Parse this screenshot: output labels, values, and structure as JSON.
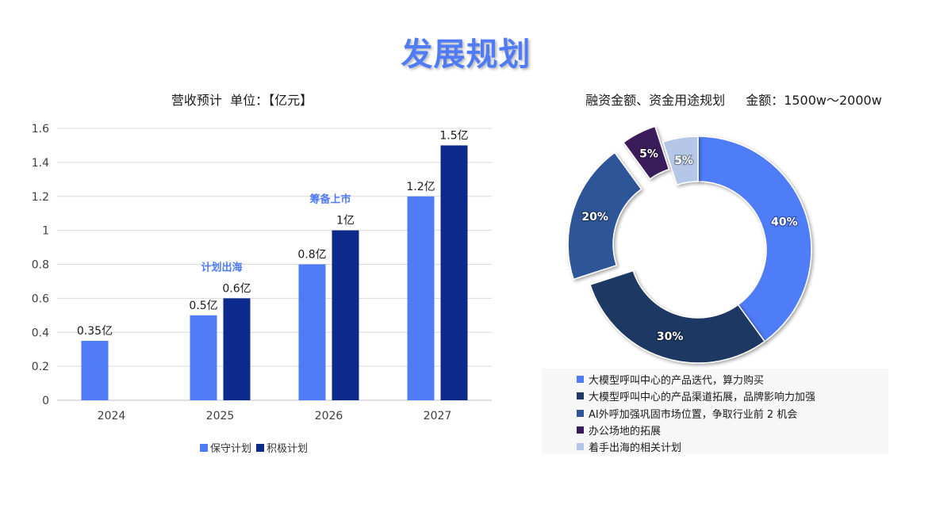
{
  "page": {
    "title": "发展规划"
  },
  "bar_chart": {
    "title_left": "营收预计",
    "title_unit": "单位：【亿元】"
  },
  "donut_chart": {
    "title_main": "融资金额、资金用途规划",
    "title_amount": "金额：1500w～2000w"
  },
  "colors": {
    "title": "#4f7bf7",
    "conservative": "#4f7bf7",
    "aggressive": "#0b2a8c",
    "annotation": "#4f7bf7"
  },
  "chart_data": [
    {
      "type": "bar",
      "categories": [
        "2024",
        "2025",
        "2026",
        "2027"
      ],
      "series": [
        {
          "name": "保守计划",
          "values": [
            0.35,
            0.5,
            0.8,
            1.2
          ],
          "labels": [
            "0.35亿",
            "0.5亿",
            "0.8亿",
            "1.2亿"
          ],
          "color": "#4f7bf7"
        },
        {
          "name": "积极计划",
          "values": [
            null,
            0.6,
            1.0,
            1.5
          ],
          "labels": [
            "",
            "0.6亿",
            "1亿",
            "1.5亿"
          ],
          "color": "#0b2a8c"
        }
      ],
      "ylim": [
        0,
        1.6
      ],
      "yticks": [
        0,
        0.2,
        0.4,
        0.6,
        0.8,
        1,
        1.2,
        1.4,
        1.6
      ],
      "ytick_labels": [
        "0",
        "0.2",
        "0.4",
        "0.6",
        "0.8",
        "1",
        "1.2",
        "1.4",
        "1.6"
      ],
      "annotations": [
        {
          "category": "2025",
          "above_value": 0.6,
          "text": "计划出海"
        },
        {
          "category": "2026",
          "above_value": 1.0,
          "text": "筹备上市"
        }
      ],
      "grid": true,
      "legend": "bottom"
    },
    {
      "type": "pie",
      "subtype": "donut",
      "slices": [
        {
          "label": "大模型呼叫中心的产品迭代，算力购买",
          "value": 40,
          "text": "40%",
          "color": "#4f7bf7",
          "exploded": false
        },
        {
          "label": "大模型呼叫中心的产品渠道拓展，品牌影响力加强",
          "value": 30,
          "text": "30%",
          "color": "#1f3864",
          "exploded": false
        },
        {
          "label": "AI外呼加强巩固市场位置，争取行业前 2 机会",
          "value": 20,
          "text": "20%",
          "color": "#2f5597",
          "exploded": true
        },
        {
          "label": "办公场地的拓展",
          "value": 5,
          "text": "5%",
          "color": "#3b1a5a",
          "exploded": true
        },
        {
          "label": "着手出海的相关计划",
          "value": 5,
          "text": "5%",
          "color": "#b4c7e7",
          "exploded": false
        }
      ],
      "legend": "bottom"
    }
  ]
}
